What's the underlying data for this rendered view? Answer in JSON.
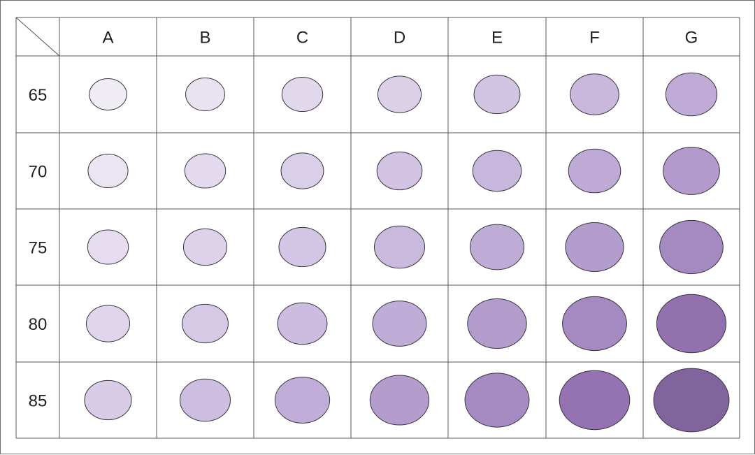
{
  "columns": [
    "A",
    "B",
    "C",
    "D",
    "E",
    "F",
    "G"
  ],
  "rows": [
    "65",
    "70",
    "75",
    "80",
    "85"
  ],
  "colors": {
    "grid_line": "#555555",
    "dot_outline": "#3a3340",
    "cell_background": "#ffffff",
    "lightest_fill": "#eeeaf3",
    "darkest_fill": "#82649c"
  },
  "cells": [
    [
      {
        "fill": "#efecf4",
        "size": 0.12
      },
      {
        "fill": "#e9e3f0",
        "size": 0.16
      },
      {
        "fill": "#e2d8ec",
        "size": 0.2
      },
      {
        "fill": "#dbd0e8",
        "size": 0.26
      },
      {
        "fill": "#d2c4e3",
        "size": 0.32
      },
      {
        "fill": "#c9b8dc",
        "size": 0.38
      },
      {
        "fill": "#c0aad6",
        "size": 0.44
      }
    ],
    [
      {
        "fill": "#ebe5f1",
        "size": 0.18
      },
      {
        "fill": "#e3daed",
        "size": 0.2
      },
      {
        "fill": "#dacfe8",
        "size": 0.24
      },
      {
        "fill": "#d2c3e3",
        "size": 0.3
      },
      {
        "fill": "#c8b7dc",
        "size": 0.38
      },
      {
        "fill": "#bfa9d5",
        "size": 0.46
      },
      {
        "fill": "#b29acc",
        "size": 0.56
      }
    ],
    [
      {
        "fill": "#e6def0",
        "size": 0.2
      },
      {
        "fill": "#ddd2ea",
        "size": 0.26
      },
      {
        "fill": "#d3c6e4",
        "size": 0.34
      },
      {
        "fill": "#c9b9dd",
        "size": 0.42
      },
      {
        "fill": "#bfacd6",
        "size": 0.5
      },
      {
        "fill": "#b39dcc",
        "size": 0.6
      },
      {
        "fill": "#a58ac2",
        "size": 0.72
      }
    ],
    [
      {
        "fill": "#e0d6ec",
        "size": 0.26
      },
      {
        "fill": "#d6c9e6",
        "size": 0.32
      },
      {
        "fill": "#ccbce0",
        "size": 0.4
      },
      {
        "fill": "#c0add7",
        "size": 0.5
      },
      {
        "fill": "#b29ccc",
        "size": 0.62
      },
      {
        "fill": "#a48ac1",
        "size": 0.74
      },
      {
        "fill": "#9370ae",
        "size": 0.86
      }
    ],
    [
      {
        "fill": "#d8cce7",
        "size": 0.34
      },
      {
        "fill": "#cdbee1",
        "size": 0.42
      },
      {
        "fill": "#c1aed8",
        "size": 0.52
      },
      {
        "fill": "#b49dcd",
        "size": 0.62
      },
      {
        "fill": "#a68bc3",
        "size": 0.74
      },
      {
        "fill": "#9572b1",
        "size": 0.88
      },
      {
        "fill": "#82649c",
        "size": 1.0
      }
    ]
  ]
}
